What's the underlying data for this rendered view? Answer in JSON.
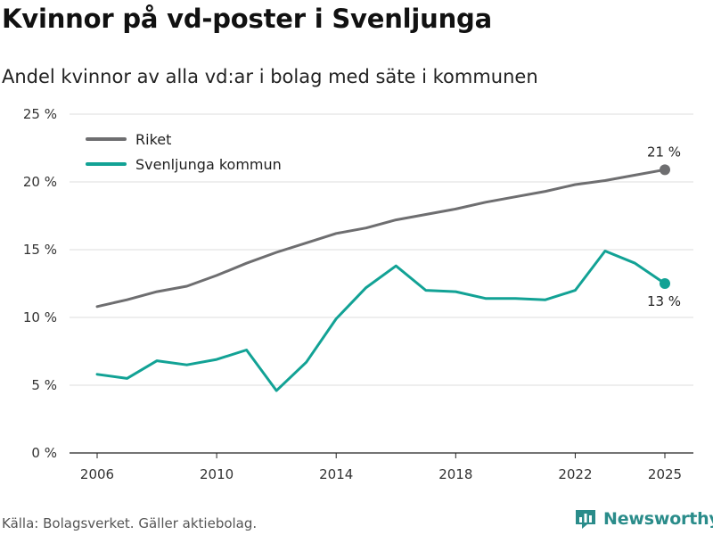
{
  "header": {
    "title": "Kvinnor på vd-poster i Svenljunga",
    "subtitle": "Andel kvinnor av alla vd:ar i bolag med säte i kommunen"
  },
  "footer": {
    "source": "Källa: Bolagsverket. Gäller aktiebolag.",
    "brand": "Newsworthy"
  },
  "chart_data": {
    "type": "line",
    "title": "Kvinnor på vd-poster i Svenljunga",
    "subtitle": "Andel kvinnor av alla vd:ar i bolag med säte i kommunen",
    "xlabel": "",
    "ylabel": "",
    "x": [
      2006,
      2007,
      2008,
      2009,
      2010,
      2011,
      2012,
      2013,
      2014,
      2015,
      2016,
      2017,
      2018,
      2019,
      2020,
      2021,
      2022,
      2023,
      2024,
      2025
    ],
    "xticks": [
      2006,
      2010,
      2014,
      2018,
      2022,
      2025
    ],
    "xlim": [
      2006,
      2025
    ],
    "ylim": [
      0,
      25
    ],
    "yticks": [
      0,
      5,
      10,
      15,
      20,
      25
    ],
    "ytick_labels": [
      "0 %",
      "5 %",
      "10 %",
      "15 %",
      "20 %",
      "25 %"
    ],
    "grid": true,
    "legend_position": "top-left",
    "series": [
      {
        "name": "Riket",
        "color": "#6e6e70",
        "end_label": "21 %",
        "end_label_position": "above",
        "values": [
          10.8,
          11.3,
          11.9,
          12.3,
          13.1,
          14.0,
          14.8,
          15.5,
          16.2,
          16.6,
          17.2,
          17.6,
          18.0,
          18.5,
          18.9,
          19.3,
          19.8,
          20.1,
          20.5,
          20.9
        ]
      },
      {
        "name": "Svenljunga kommun",
        "color": "#12a295",
        "end_label": "13 %",
        "end_label_position": "below",
        "values": [
          5.8,
          5.5,
          6.8,
          6.5,
          6.9,
          7.6,
          4.6,
          6.7,
          9.9,
          12.2,
          13.8,
          12.0,
          11.9,
          11.4,
          11.4,
          11.3,
          12.0,
          14.9,
          14.0,
          12.5
        ]
      }
    ]
  }
}
